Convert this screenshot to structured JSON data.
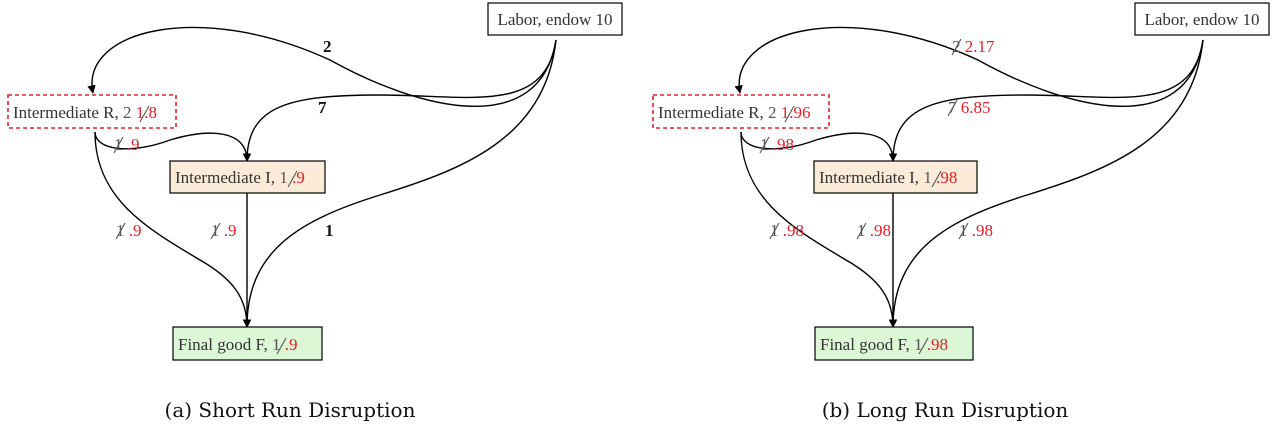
{
  "colors": {
    "dashed_border": "#e8202a",
    "new_value": "#e8202a",
    "intermediate_i_fill": "#fdebd9",
    "final_good_fill": "#dbf7d6",
    "labor_fill": "#ffffff"
  },
  "panel_a": {
    "caption": "(a) Short Run Disruption",
    "labor": "Labor, endow 10",
    "r_name": "Intermediate R, ",
    "r_old": "2",
    "r_new": " 1.8",
    "i_name": "Intermediate I, ",
    "i_old": "1",
    "i_new": " .9",
    "f_name": "Final good F, ",
    "f_old": "1",
    "f_new": " .9",
    "edge_labor_r": "2",
    "edge_labor_i": "7",
    "edge_labor_f": "1",
    "edge_r_i_old": "1",
    "edge_r_i_new": " .9",
    "edge_r_f_old": "1",
    "edge_r_f_new": " .9",
    "edge_i_f_old": "1",
    "edge_i_f_new": " .9"
  },
  "panel_b": {
    "caption": "(b) Long Run Disruption",
    "labor": "Labor, endow 10",
    "r_name": "Intermediate R, ",
    "r_old": "2",
    "r_new": " 1.96",
    "i_name": "Intermediate I, ",
    "i_old": "1",
    "i_new": " .98",
    "f_name": "Final good F, ",
    "f_old": "1",
    "f_new": " .98",
    "edge_labor_r_old": "2",
    "edge_labor_r_new": " 2.17",
    "edge_labor_i_old": "7",
    "edge_labor_i_new": " 6.85",
    "edge_labor_f_old": "1",
    "edge_labor_f_new": " .98",
    "edge_r_i_old": "1",
    "edge_r_i_new": " .98",
    "edge_r_f_old": "1",
    "edge_r_f_new": " .98",
    "edge_i_f_old": "1",
    "edge_i_f_new": " .98"
  }
}
